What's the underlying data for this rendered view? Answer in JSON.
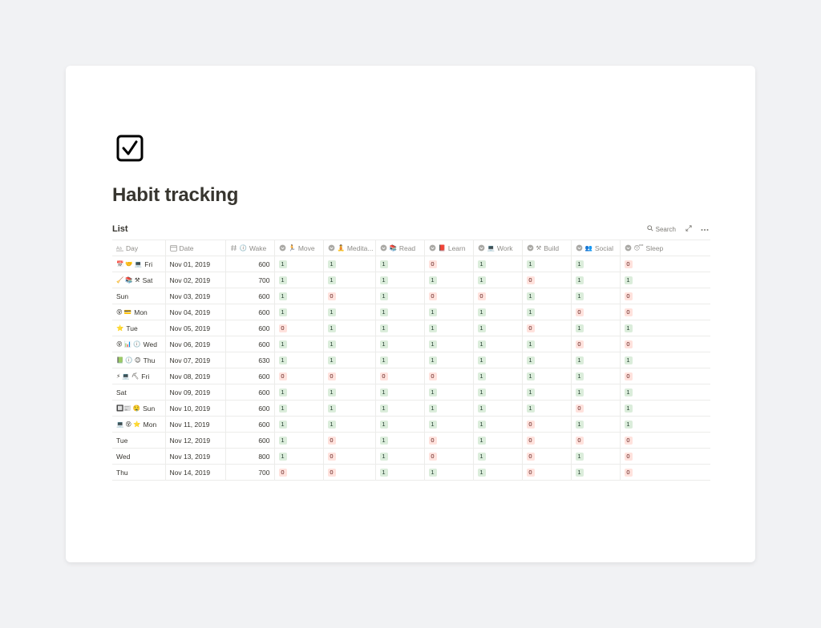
{
  "page": {
    "icon": "checkbox-icon",
    "title": "Habit tracking"
  },
  "view": {
    "title": "List",
    "search_label": "Search",
    "icons": {
      "search": "search-icon",
      "expand": "expand-icon",
      "more": "more-icon"
    }
  },
  "columns": [
    {
      "key": "day",
      "label": "Day",
      "type": "title",
      "emoji": ""
    },
    {
      "key": "date",
      "label": "Date",
      "type": "date",
      "emoji": ""
    },
    {
      "key": "wake",
      "label": "Wake",
      "type": "number",
      "emoji": "🕕"
    },
    {
      "key": "move",
      "label": "Move",
      "type": "select",
      "emoji": "🏃"
    },
    {
      "key": "meditate",
      "label": "Medita...",
      "type": "select",
      "emoji": "🧘"
    },
    {
      "key": "read",
      "label": "Read",
      "type": "select",
      "emoji": "📚"
    },
    {
      "key": "learn",
      "label": "Learn",
      "type": "select",
      "emoji": "📕"
    },
    {
      "key": "work",
      "label": "Work",
      "type": "select",
      "emoji": "💻"
    },
    {
      "key": "build",
      "label": "Build",
      "type": "select",
      "emoji": "⚒"
    },
    {
      "key": "social",
      "label": "Social",
      "type": "select",
      "emoji": "👥"
    },
    {
      "key": "sleep",
      "label": "Sleep",
      "type": "select",
      "emoji": "😴"
    }
  ],
  "rows": [
    {
      "day_emoji": "📅 🤝 💻",
      "day": "Fri",
      "date": "Nov 01, 2019",
      "wake": "600",
      "habits": [
        "1",
        "1",
        "1",
        "0",
        "1",
        "1",
        "1",
        "0"
      ]
    },
    {
      "day_emoji": "🧹 📚 ⚒",
      "day": "Sat",
      "date": "Nov 02, 2019",
      "wake": "700",
      "habits": [
        "1",
        "1",
        "1",
        "1",
        "1",
        "0",
        "1",
        "1"
      ]
    },
    {
      "day_emoji": "",
      "day": "Sun",
      "date": "Nov 03, 2019",
      "wake": "600",
      "habits": [
        "1",
        "0",
        "1",
        "0",
        "0",
        "1",
        "1",
        "0"
      ]
    },
    {
      "day_emoji": "😵 💳",
      "day": "Mon",
      "date": "Nov 04, 2019",
      "wake": "600",
      "habits": [
        "1",
        "1",
        "1",
        "1",
        "1",
        "1",
        "0",
        "0"
      ]
    },
    {
      "day_emoji": "⭐",
      "day": "Tue",
      "date": "Nov 05, 2019",
      "wake": "600",
      "habits": [
        "0",
        "1",
        "1",
        "1",
        "1",
        "0",
        "1",
        "1"
      ]
    },
    {
      "day_emoji": "😵 📊 🕕",
      "day": "Wed",
      "date": "Nov 06, 2019",
      "wake": "600",
      "habits": [
        "1",
        "1",
        "1",
        "1",
        "1",
        "1",
        "0",
        "0"
      ]
    },
    {
      "day_emoji": "📗 🕕 😊",
      "day": "Thu",
      "date": "Nov 07, 2019",
      "wake": "630",
      "habits": [
        "1",
        "1",
        "1",
        "1",
        "1",
        "1",
        "1",
        "1"
      ]
    },
    {
      "day_emoji": "⚡ 💻 ⛏",
      "day": "Fri",
      "date": "Nov 08, 2019",
      "wake": "600",
      "habits": [
        "0",
        "0",
        "0",
        "0",
        "1",
        "1",
        "1",
        "0"
      ]
    },
    {
      "day_emoji": "",
      "day": "Sat",
      "date": "Nov 09, 2019",
      "wake": "600",
      "habits": [
        "1",
        "1",
        "1",
        "1",
        "1",
        "1",
        "1",
        "1"
      ]
    },
    {
      "day_emoji": "🔲📰 🤤",
      "day": "Sun",
      "date": "Nov 10, 2019",
      "wake": "600",
      "habits": [
        "1",
        "1",
        "1",
        "1",
        "1",
        "1",
        "0",
        "1"
      ]
    },
    {
      "day_emoji": "💻 😵 ⭐",
      "day": "Mon",
      "date": "Nov 11, 2019",
      "wake": "600",
      "habits": [
        "1",
        "1",
        "1",
        "1",
        "1",
        "0",
        "1",
        "1"
      ]
    },
    {
      "day_emoji": "",
      "day": "Tue",
      "date": "Nov 12, 2019",
      "wake": "600",
      "habits": [
        "1",
        "0",
        "1",
        "0",
        "1",
        "0",
        "0",
        "0"
      ]
    },
    {
      "day_emoji": "",
      "day": "Wed",
      "date": "Nov 13, 2019",
      "wake": "800",
      "habits": [
        "1",
        "0",
        "1",
        "0",
        "1",
        "0",
        "1",
        "0"
      ]
    },
    {
      "day_emoji": "",
      "day": "Thu",
      "date": "Nov 14, 2019",
      "wake": "700",
      "habits": [
        "0",
        "0",
        "1",
        "1",
        "1",
        "0",
        "1",
        "0"
      ]
    }
  ],
  "colors": {
    "yes_bg": "#dbeddb",
    "yes_fg": "#1c3829",
    "no_bg": "#ffe2dd",
    "no_fg": "#5d1715"
  }
}
